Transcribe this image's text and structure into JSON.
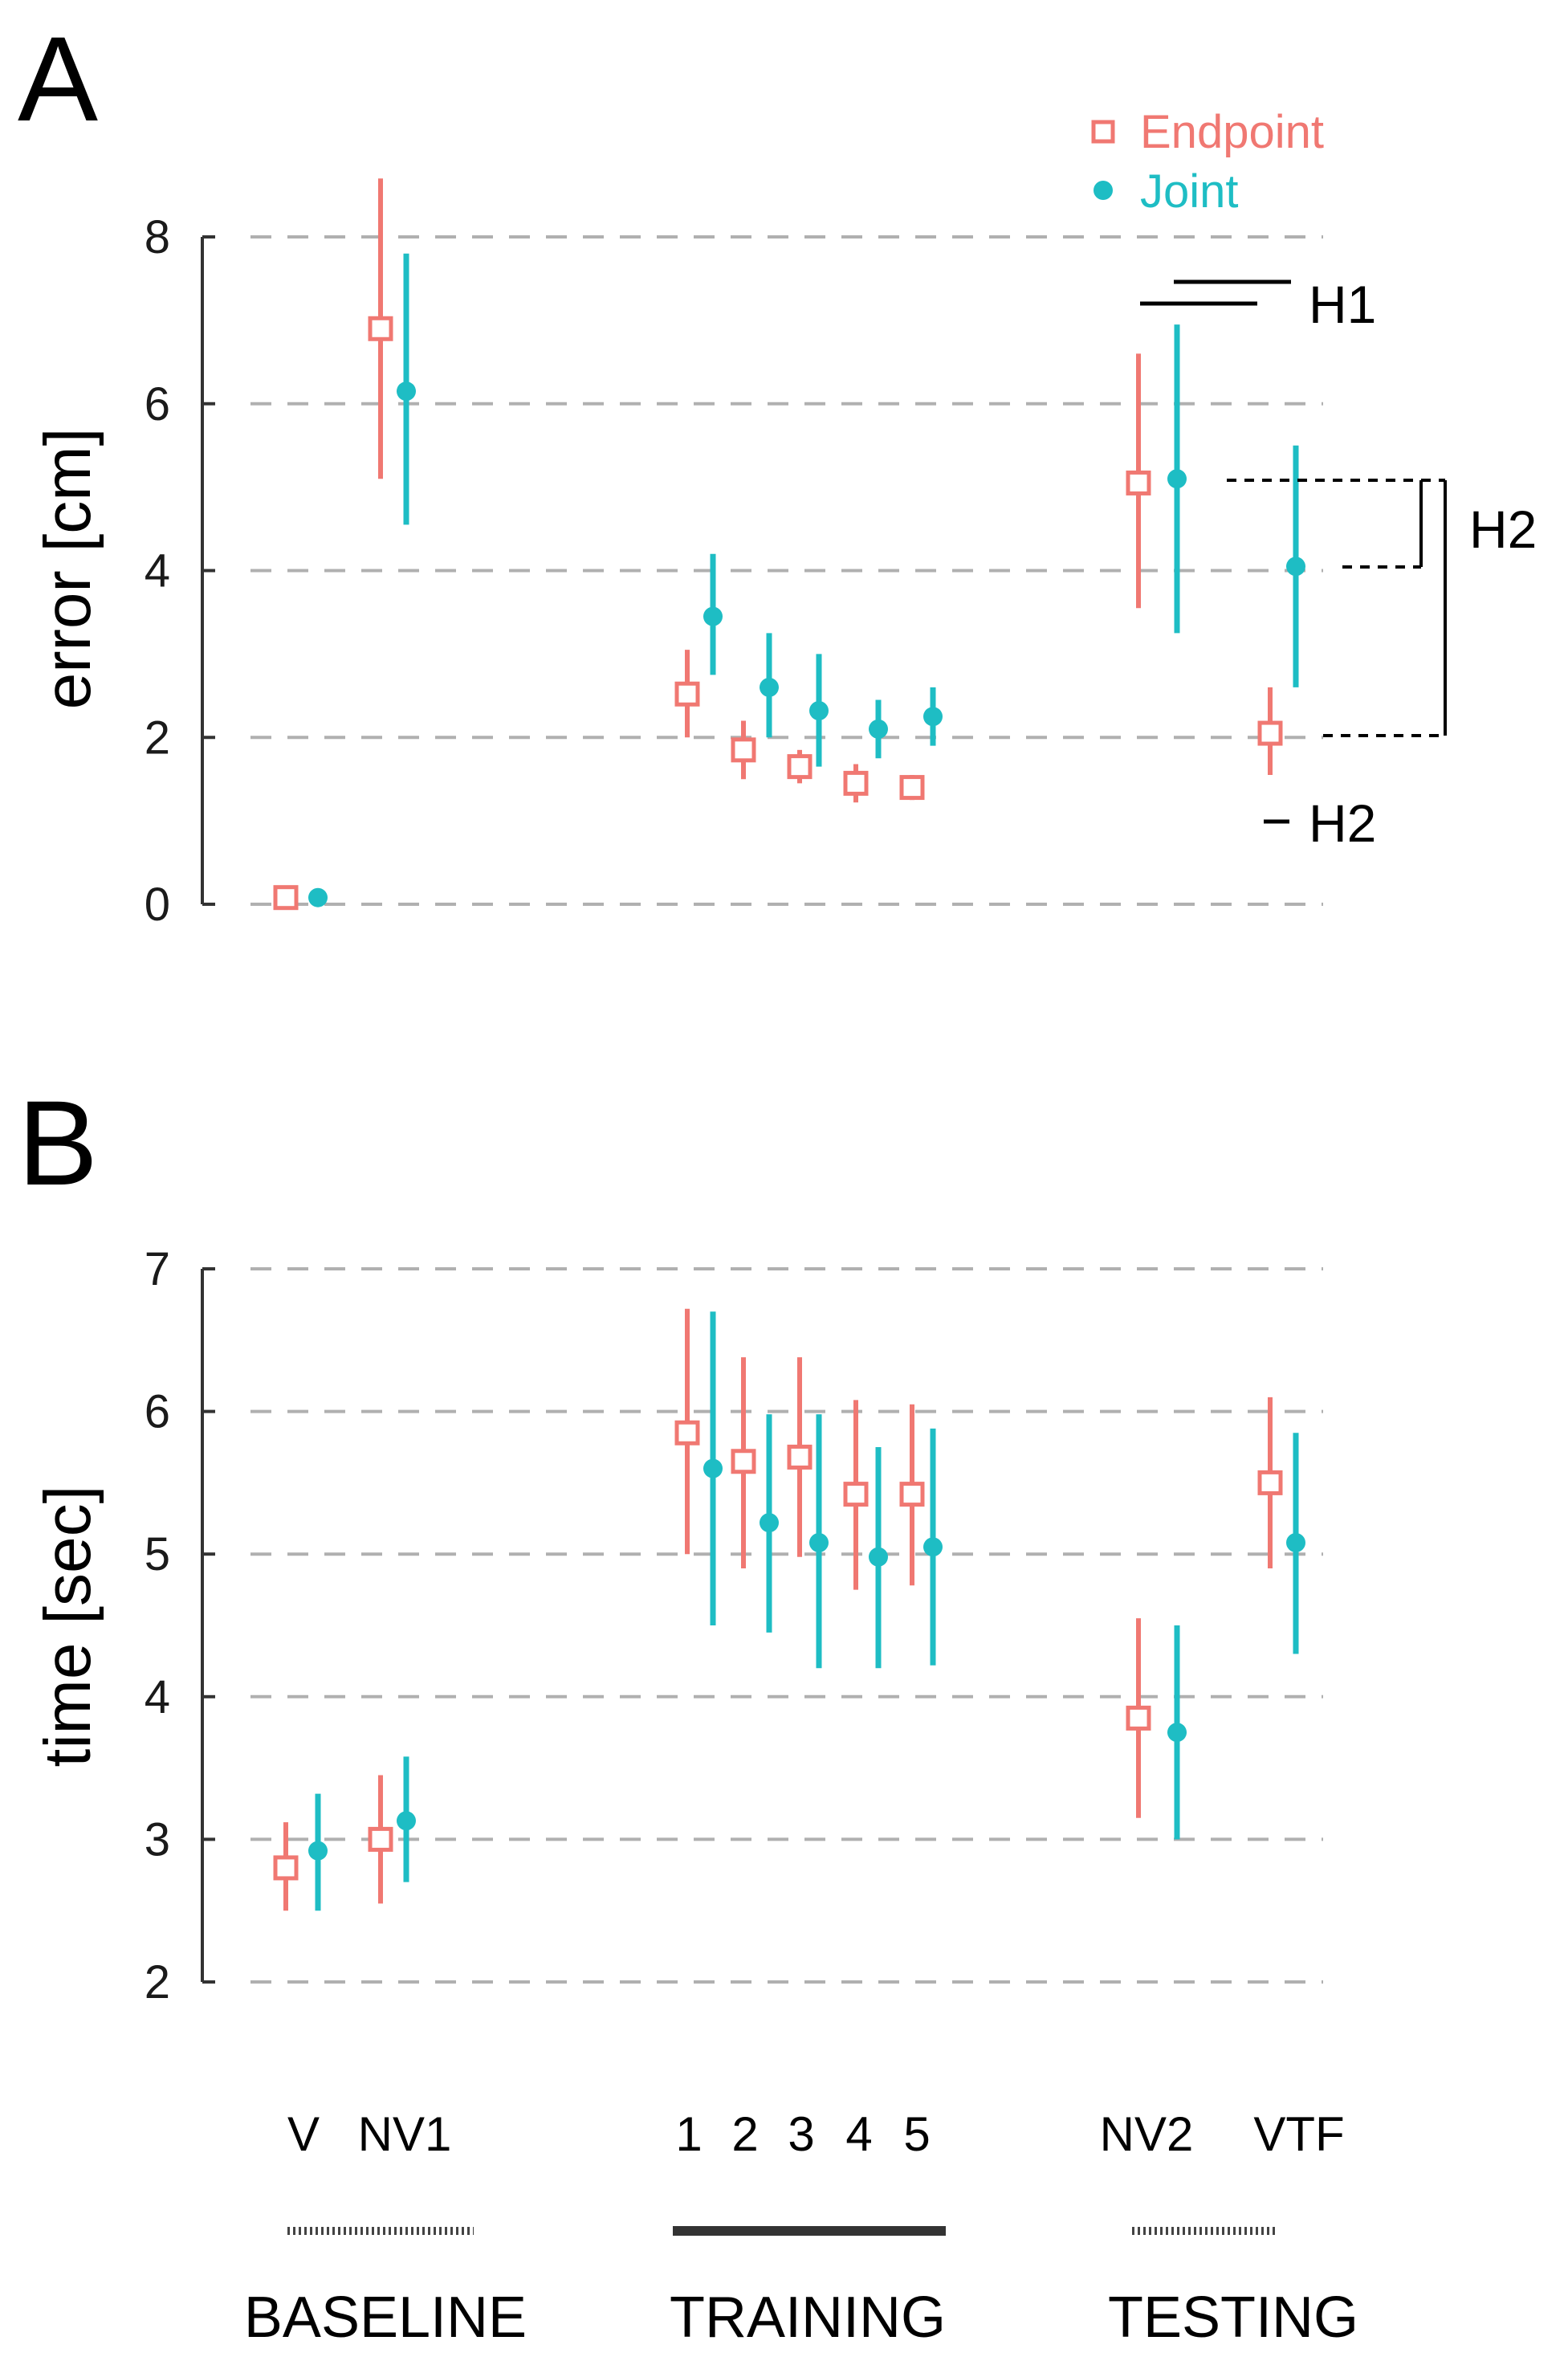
{
  "colors": {
    "endpoint": "#F07872",
    "joint": "#1EBDC4",
    "grid": "#B0B0B0",
    "axis": "#333333",
    "annotation": "#000000"
  },
  "legend": {
    "endpoint_label": "Endpoint",
    "joint_label": "Joint"
  },
  "x_labels": [
    "V",
    "NV1",
    "1",
    "2",
    "3",
    "4",
    "5",
    "NV2",
    "VTF"
  ],
  "groups": [
    {
      "label": "BASELINE",
      "style": "dotted"
    },
    {
      "label": "TRAINING",
      "style": "solid"
    },
    {
      "label": "TESTING",
      "style": "dotted"
    }
  ],
  "annotations": {
    "h1": "H1",
    "h2_upper": "H2",
    "h2_lower": "H2"
  },
  "chart_data": [
    {
      "panel": "A",
      "type": "scatter",
      "title": "",
      "xlabel": "",
      "ylabel": "error [cm]",
      "ylim": [
        0,
        8
      ],
      "yticks": [
        "0",
        "2",
        "4",
        "6",
        "8"
      ],
      "grid": true,
      "legend_position": "top-right",
      "categories": [
        "V",
        "NV1",
        "1",
        "2",
        "3",
        "4",
        "5",
        "NV2",
        "VTF"
      ],
      "series": [
        {
          "name": "Endpoint",
          "marker": "open-square",
          "values": [
            0.08,
            6.9,
            2.52,
            1.85,
            1.65,
            1.45,
            1.4,
            5.05,
            2.05
          ],
          "lower": [
            null,
            5.1,
            2.0,
            1.5,
            1.45,
            1.22,
            1.25,
            3.55,
            1.55
          ],
          "upper": [
            null,
            8.7,
            3.05,
            2.2,
            1.85,
            1.68,
            1.55,
            6.6,
            2.6
          ]
        },
        {
          "name": "Joint",
          "marker": "filled-circle",
          "values": [
            0.08,
            6.15,
            3.45,
            2.6,
            2.32,
            2.1,
            2.25,
            5.1,
            4.05
          ],
          "lower": [
            null,
            4.55,
            2.75,
            2.0,
            1.65,
            1.75,
            1.9,
            3.25,
            2.6
          ],
          "upper": [
            null,
            7.8,
            4.2,
            3.25,
            3.0,
            2.45,
            2.6,
            6.95,
            5.5
          ]
        }
      ]
    },
    {
      "panel": "B",
      "type": "scatter",
      "title": "",
      "xlabel": "",
      "ylabel": "time [sec]",
      "ylim": [
        2,
        7
      ],
      "yticks": [
        "2",
        "3",
        "4",
        "5",
        "6",
        "7"
      ],
      "grid": true,
      "categories": [
        "V",
        "NV1",
        "1",
        "2",
        "3",
        "4",
        "5",
        "NV2",
        "VTF"
      ],
      "series": [
        {
          "name": "Endpoint",
          "marker": "open-square",
          "values": [
            2.8,
            3.0,
            5.85,
            5.65,
            5.68,
            5.42,
            5.42,
            3.85,
            5.5
          ],
          "lower": [
            2.5,
            2.55,
            5.0,
            4.9,
            4.98,
            4.75,
            4.78,
            3.15,
            4.9
          ],
          "upper": [
            3.12,
            3.45,
            6.72,
            6.38,
            6.38,
            6.08,
            6.05,
            4.55,
            6.1
          ]
        },
        {
          "name": "Joint",
          "marker": "filled-circle",
          "values": [
            2.92,
            3.13,
            5.6,
            5.22,
            5.08,
            4.98,
            5.05,
            3.75,
            5.08
          ],
          "lower": [
            2.5,
            2.7,
            4.5,
            4.45,
            4.2,
            4.2,
            4.22,
            3.0,
            4.3
          ],
          "upper": [
            3.32,
            3.58,
            6.7,
            5.98,
            5.98,
            5.75,
            5.88,
            4.5,
            5.85
          ]
        }
      ]
    }
  ]
}
